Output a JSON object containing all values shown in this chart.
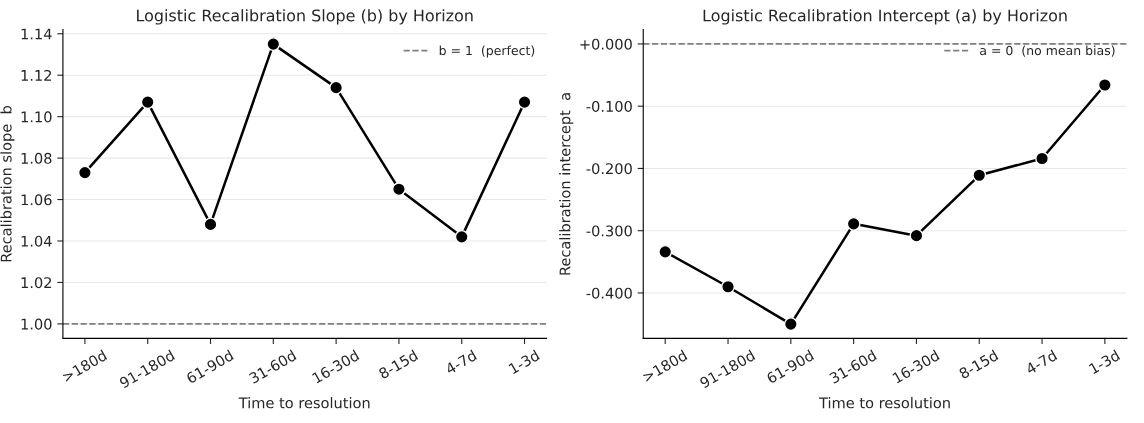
{
  "chart_data": [
    {
      "type": "line",
      "title": "Logistic Recalibration Slope (b) by Horizon",
      "xlabel": "Time to resolution",
      "ylabel": "Recalibration slope  b",
      "categories": [
        ">180d",
        "91-180d",
        "61-90d",
        "31-60d",
        "16-30d",
        "8-15d",
        "4-7d",
        "1-3d"
      ],
      "series": [
        {
          "color": "#000000",
          "values": [
            1.073,
            1.107,
            1.048,
            1.135,
            1.114,
            1.065,
            1.042,
            1.107
          ]
        }
      ],
      "ylim": [
        0.993,
        1.142
      ],
      "yticks": [
        {
          "value": 1.0,
          "label": "1.00"
        },
        {
          "value": 1.02,
          "label": "1.02"
        },
        {
          "value": 1.04,
          "label": "1.04"
        },
        {
          "value": 1.06,
          "label": "1.06"
        },
        {
          "value": 1.08,
          "label": "1.08"
        },
        {
          "value": 1.1,
          "label": "1.10"
        },
        {
          "value": 1.12,
          "label": "1.12"
        },
        {
          "value": 1.14,
          "label": "1.14"
        }
      ],
      "ref_lines": [
        {
          "axis": "y",
          "value": 1,
          "label": "b = 1  (perfect)",
          "color": "#808080",
          "line_style": "dashed"
        }
      ],
      "grid": "y",
      "legend": "top right",
      "marker": "circle",
      "line_style": "solid"
    },
    {
      "type": "line",
      "title": "Logistic Recalibration Intercept (a) by Horizon",
      "xlabel": "Time to resolution",
      "ylabel": "Recalibration intercept  a",
      "categories": [
        ">180d",
        "91-180d",
        "61-90d",
        "31-60d",
        "16-30d",
        "8-15d",
        "4-7d",
        "1-3d"
      ],
      "series": [
        {
          "color": "#000000",
          "values": [
            -0.334,
            -0.39,
            -0.45,
            -0.289,
            -0.308,
            -0.211,
            -0.184,
            -0.066
          ]
        }
      ],
      "ylim": [
        -0.473,
        0.023
      ],
      "yticks": [
        {
          "value": -0.4,
          "label": "-0.400"
        },
        {
          "value": -0.3,
          "label": "-0.300"
        },
        {
          "value": -0.2,
          "label": "-0.200"
        },
        {
          "value": -0.1,
          "label": "-0.100"
        },
        {
          "value": 0,
          "label": "+0.000"
        }
      ],
      "ref_lines": [
        {
          "axis": "y",
          "value": 0,
          "label": "a = 0  (no mean bias)",
          "color": "#808080",
          "line_style": "dashed"
        }
      ],
      "grid": "y",
      "legend": "top right",
      "marker": "circle",
      "line_style": "solid"
    }
  ]
}
